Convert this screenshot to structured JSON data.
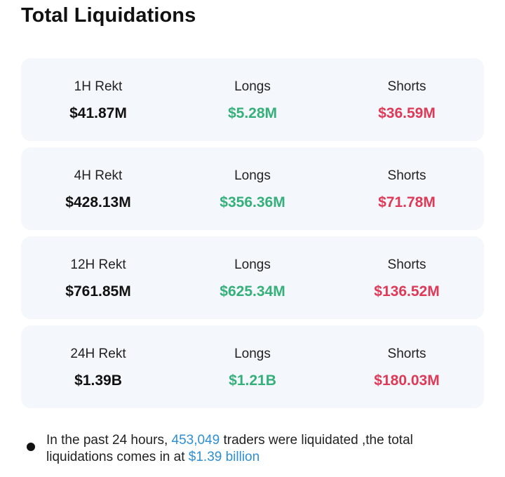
{
  "title": "Total Liquidations",
  "rows": [
    {
      "period": "1H Rekt",
      "total": "$41.87M",
      "longs_label": "Longs",
      "longs": "$5.28M",
      "shorts_label": "Shorts",
      "shorts": "$36.59M"
    },
    {
      "period": "4H Rekt",
      "total": "$428.13M",
      "longs_label": "Longs",
      "longs": "$356.36M",
      "shorts_label": "Shorts",
      "shorts": "$71.78M"
    },
    {
      "period": "12H Rekt",
      "total": "$761.85M",
      "longs_label": "Longs",
      "longs": "$625.34M",
      "shorts_label": "Shorts",
      "shorts": "$136.52M"
    },
    {
      "period": "24H Rekt",
      "total": "$1.39B",
      "longs_label": "Longs",
      "longs": "$1.21B",
      "shorts_label": "Shorts",
      "shorts": "$180.03M"
    }
  ],
  "summary": {
    "part1": "In the past 24 hours, ",
    "traders": "453,049",
    "part2": " traders were liquidated ,the total liquidations comes in at ",
    "amount": "$1.39 billion"
  },
  "colors": {
    "longs": "#36b07a",
    "shorts": "#de3a58",
    "highlight": "#2e8fd6",
    "card_bg": "#f4f7fb"
  }
}
